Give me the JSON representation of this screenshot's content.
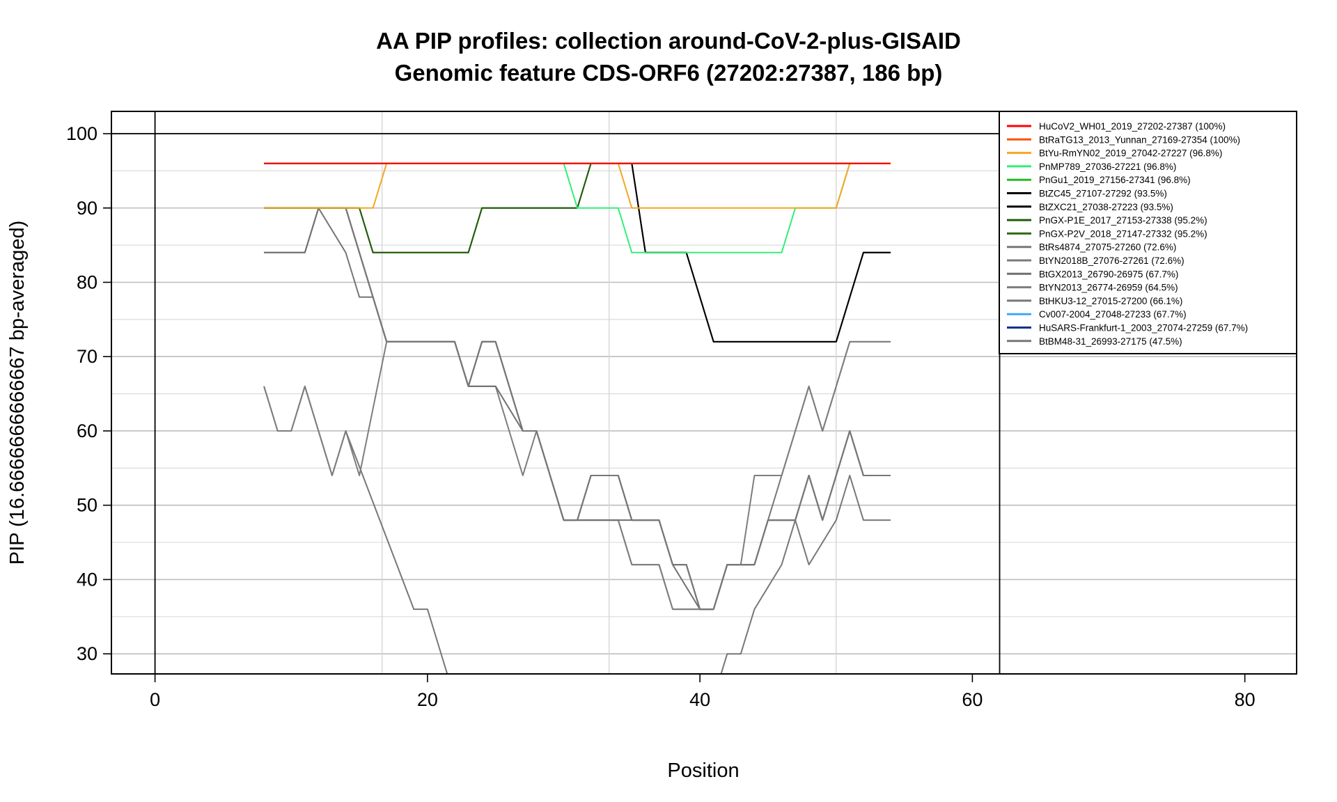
{
  "chart_data": {
    "type": "line",
    "title": "AA PIP profiles: collection around-CoV-2-plus-GISAID",
    "subtitle": "Genomic feature CDS-ORF6 (27202:27387, 186 bp)",
    "xlabel": "Position",
    "ylabel": "PIP (16.6666666666667 bp-averaged)",
    "xlim": [
      -3.2,
      83.8
    ],
    "ylim": [
      27.3,
      103.0
    ],
    "xticks": [
      0,
      20,
      40,
      60,
      80
    ],
    "yticks": [
      30,
      40,
      50,
      60,
      70,
      80,
      90,
      100
    ],
    "xtick_labels": [
      "0",
      "20",
      "40",
      "60",
      "80"
    ],
    "ytick_labels": [
      "30",
      "40",
      "50",
      "60",
      "70",
      "80",
      "90",
      "100"
    ],
    "grid": true,
    "legend_position": "top-right",
    "series": [
      {
        "name": "HuCoV2_WH01_2019_27202-27387 (100%)",
        "color": "#ff0000",
        "x": [
          8,
          54
        ],
        "y": [
          96,
          96
        ]
      },
      {
        "name": "BtRaTG13_2013_Yunnan_27169-27354 (100%)",
        "color": "#ff5000",
        "x": [
          8,
          54
        ],
        "y": [
          96,
          96
        ]
      },
      {
        "name": "BtYu-RmYN02_2019_27042-27227 (96.8%)",
        "color": "#f5a623",
        "x": [
          8,
          16,
          17,
          34,
          35,
          50,
          51,
          54
        ],
        "y": [
          90,
          90,
          96,
          96,
          90,
          90,
          96,
          96
        ]
      },
      {
        "name": "PnMP789_27036-27221 (96.8%)",
        "color": "#33ee77",
        "x": [
          8,
          30,
          31,
          34,
          35,
          46,
          47,
          50,
          51,
          54
        ],
        "y": [
          96,
          96,
          90,
          90,
          84,
          84,
          90,
          90,
          96,
          96
        ]
      },
      {
        "name": "PnGu1_2019_27156-27341 (96.8%)",
        "color": "#22bb22",
        "x": [
          8,
          54
        ],
        "y": [
          96,
          96
        ]
      },
      {
        "name": "BtZC45_27107-27292 (93.5%)",
        "color": "#000000",
        "x": [
          8,
          35,
          36,
          39,
          41,
          50,
          52,
          54
        ],
        "y": [
          96,
          96,
          84,
          84,
          72,
          72,
          84,
          84
        ]
      },
      {
        "name": "BtZXC21_27038-27223 (93.5%)",
        "color": "#000000",
        "x": [
          8,
          35,
          36,
          39,
          41,
          50,
          52,
          54
        ],
        "y": [
          96,
          96,
          84,
          84,
          72,
          72,
          84,
          84
        ]
      },
      {
        "name": "PnGX-P1E_2017_27153-27338 (95.2%)",
        "color": "#1f5c0a",
        "x": [
          8,
          15,
          16,
          23,
          24,
          31,
          32,
          54
        ],
        "y": [
          90,
          90,
          84,
          84,
          90,
          90,
          96,
          96
        ]
      },
      {
        "name": "PnGX-P2V_2018_27147-27332 (95.2%)",
        "color": "#2d6b14",
        "x": [
          8,
          15,
          16,
          23,
          24,
          31,
          32,
          54
        ],
        "y": [
          90,
          90,
          84,
          84,
          90,
          90,
          96,
          96
        ]
      },
      {
        "name": "BtRs4874_27075-27260 (72.6%)",
        "color": "#777777",
        "x": [
          8,
          12,
          13,
          14,
          17,
          22,
          23,
          24,
          25,
          27,
          28,
          30,
          31,
          32,
          34,
          35,
          37,
          38,
          39,
          40,
          41,
          42,
          44,
          45,
          47,
          48,
          49,
          50,
          51,
          52,
          54
        ],
        "y": [
          90,
          90,
          90,
          90,
          72,
          72,
          66,
          72,
          72,
          60,
          60,
          48,
          48,
          54,
          54,
          48,
          48,
          42,
          42,
          36,
          36,
          42,
          42,
          48,
          48,
          54,
          48,
          54,
          60,
          54,
          54
        ]
      },
      {
        "name": "BtYN2018B_27076-27261 (72.6%)",
        "color": "#7a7a7a",
        "x": [
          8,
          12,
          13,
          14,
          17,
          22,
          23,
          24,
          25,
          27,
          28,
          30,
          31,
          32,
          34,
          35,
          37,
          38,
          39,
          40,
          41,
          42,
          44,
          45,
          47,
          48,
          49,
          50,
          51,
          52,
          54
        ],
        "y": [
          90,
          90,
          90,
          90,
          72,
          72,
          66,
          72,
          72,
          60,
          60,
          48,
          48,
          54,
          54,
          48,
          48,
          42,
          42,
          36,
          36,
          42,
          42,
          48,
          48,
          54,
          48,
          54,
          60,
          54,
          54
        ]
      },
      {
        "name": "BtGX2013_26790-26975 (67.7%)",
        "color": "#6f6f6f",
        "x": [
          8,
          11,
          12,
          14,
          15,
          17,
          22,
          23,
          25,
          27,
          28,
          30,
          35,
          37,
          38,
          40,
          41,
          42,
          44,
          45,
          47,
          48,
          49,
          50,
          51,
          52,
          54
        ],
        "y": [
          84,
          84,
          90,
          90,
          84,
          72,
          72,
          66,
          66,
          60,
          60,
          48,
          48,
          48,
          42,
          36,
          36,
          42,
          42,
          48,
          48,
          54,
          48,
          54,
          60,
          54,
          54
        ]
      },
      {
        "name": "BtYN2013_26774-26959 (64.5%)",
        "color": "#7d7d7d",
        "x": [
          8,
          9,
          10,
          11,
          13,
          14,
          15,
          17,
          22,
          23,
          24,
          25,
          26,
          27,
          28,
          30,
          31,
          34,
          35,
          37,
          38,
          41,
          42,
          43,
          44,
          46,
          47,
          48,
          49,
          50,
          51,
          54
        ],
        "y": [
          66,
          60,
          60,
          66,
          54,
          60,
          54,
          72,
          72,
          66,
          66,
          66,
          60,
          54,
          60,
          48,
          48,
          48,
          42,
          42,
          36,
          36,
          42,
          42,
          54,
          54,
          60,
          66,
          60,
          66,
          72,
          72
        ]
      },
      {
        "name": "BtHKU3-12_27015-27200 (66.1%)",
        "color": "#767676",
        "x": [
          8,
          11,
          12,
          14,
          15,
          16,
          17,
          22,
          23,
          24,
          25,
          26,
          27,
          28,
          30,
          31,
          34,
          35,
          37,
          38,
          41,
          42,
          44,
          46,
          47,
          48,
          49,
          50,
          51,
          52,
          53,
          54
        ],
        "y": [
          84,
          84,
          90,
          84,
          78,
          78,
          72,
          72,
          66,
          72,
          72,
          66,
          60,
          60,
          48,
          48,
          48,
          42,
          42,
          36,
          36,
          42,
          42,
          54,
          60,
          66,
          60,
          66,
          72,
          72,
          72,
          72
        ]
      },
      {
        "name": "Cv007-2004_27048-27233 (67.7%)",
        "color": "#3fa9f5",
        "x": [
          8,
          12,
          13,
          14,
          17,
          22,
          23,
          24,
          25,
          27,
          28,
          30,
          31,
          32,
          34,
          35,
          37,
          38,
          39,
          40,
          41,
          42,
          44,
          45,
          47,
          48,
          49,
          50,
          51,
          52,
          54
        ],
        "y": [
          90,
          90,
          90,
          90,
          72,
          72,
          66,
          72,
          72,
          60,
          60,
          48,
          48,
          54,
          54,
          48,
          48,
          42,
          42,
          36,
          36,
          42,
          42,
          48,
          48,
          54,
          48,
          54,
          60,
          54,
          54
        ]
      },
      {
        "name": "HuSARS-Frankfurt-1_2003_27074-27259 (67.7%)",
        "color": "#0a2f8c",
        "x": [
          8,
          12,
          13,
          14,
          17,
          22,
          23,
          24,
          25,
          27,
          28,
          30,
          31,
          32,
          34,
          35,
          37,
          38,
          39,
          40,
          41,
          42,
          44,
          45,
          47,
          48,
          49,
          50,
          51,
          52,
          54
        ],
        "y": [
          90,
          90,
          90,
          90,
          72,
          72,
          66,
          72,
          72,
          60,
          60,
          48,
          48,
          54,
          54,
          48,
          48,
          42,
          42,
          36,
          36,
          42,
          42,
          48,
          48,
          54,
          48,
          54,
          60,
          54,
          54
        ]
      },
      {
        "name": "BtBM48-31_26993-27175 (47.5%)",
        "color": "#777777",
        "x": [
          8,
          9,
          10,
          11,
          13,
          14,
          19,
          20,
          22,
          41,
          42,
          43,
          44,
          46,
          47,
          48,
          50,
          51,
          52,
          54
        ],
        "y": [
          66,
          60,
          60,
          66,
          54,
          60,
          36,
          36,
          24,
          24,
          30,
          30,
          36,
          42,
          48,
          42,
          48,
          54,
          48,
          48
        ]
      }
    ]
  }
}
